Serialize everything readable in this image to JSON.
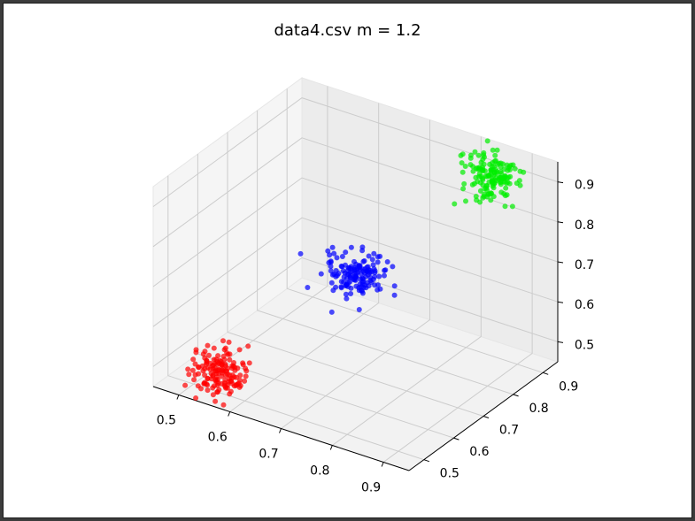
{
  "title": "data4.csv m = 1.2",
  "chart_data": {
    "type": "scatter",
    "projection": "3d",
    "title": "data4.csv m = 1.2",
    "xlabel": "",
    "ylabel": "",
    "zlabel": "",
    "xlim": [
      0.45,
      0.95
    ],
    "ylim": [
      0.45,
      0.95
    ],
    "zlim": [
      0.45,
      0.95
    ],
    "x_ticks": [
      "0.5",
      "0.6",
      "0.7",
      "0.8",
      "0.9"
    ],
    "y_ticks": [
      "0.5",
      "0.6",
      "0.7",
      "0.8",
      "0.9"
    ],
    "z_ticks": [
      "0.5",
      "0.6",
      "0.7",
      "0.8",
      "0.9"
    ],
    "grid": true,
    "series": [
      {
        "color": "#ff0000",
        "center": [
          0.55,
          0.5,
          0.5
        ],
        "spread": 0.025,
        "count": 150
      },
      {
        "color": "#0000ff",
        "center": [
          0.7,
          0.7,
          0.7
        ],
        "spread": 0.025,
        "count": 150
      },
      {
        "color": "#00ee00",
        "center": [
          0.85,
          0.9,
          0.9
        ],
        "spread": 0.025,
        "count": 150
      }
    ]
  }
}
